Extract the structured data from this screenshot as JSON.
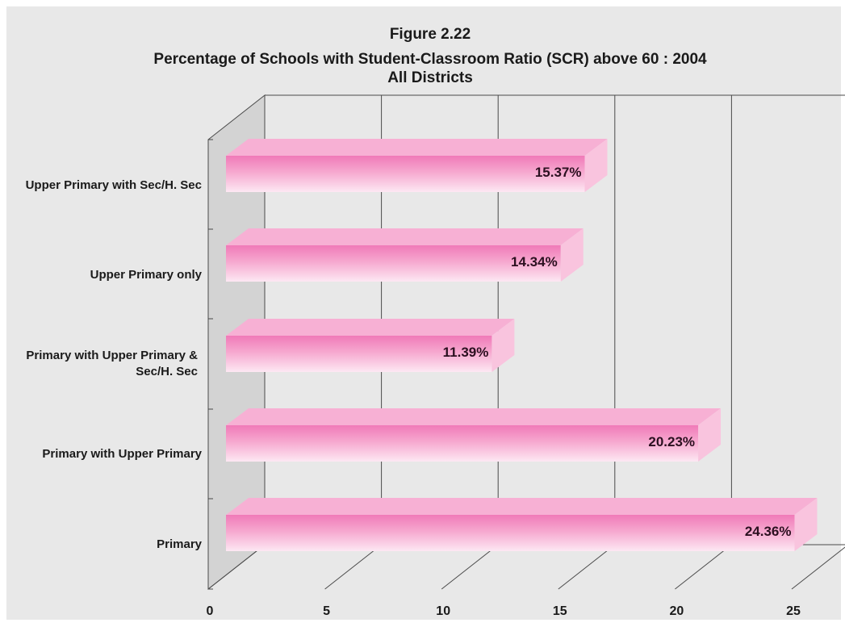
{
  "colors": {
    "background": "#e8e8e8",
    "side_wall": "#d3d3d3",
    "bar_front": "#f38cc3",
    "bar_top": "#f7b0d4",
    "bar_side": "#f9c4de",
    "grid": "#4a4a4a"
  },
  "chart_data": {
    "type": "bar",
    "orientation": "horizontal",
    "three_d": true,
    "title": "Figure 2.22",
    "subtitle": "Percentage of Schools with Student-Classroom Ratio (SCR) above 60 : 2004",
    "subtitle2": "All Districts",
    "categories": [
      "Upper Primary with Sec/H. Sec",
      "Upper Primary only",
      "Primary with Upper Primary & Sec/H. Sec",
      "Primary with Upper Primary",
      "Primary"
    ],
    "category_lines": [
      [
        "Upper Primary with Sec/H. Sec"
      ],
      [
        "Upper Primary only"
      ],
      [
        "Primary with Upper Primary &",
        "Sec/H. Sec"
      ],
      [
        "Primary with Upper Primary"
      ],
      [
        "Primary"
      ]
    ],
    "values": [
      15.37,
      14.34,
      11.39,
      20.23,
      24.36
    ],
    "data_labels": [
      "15.37%",
      "14.34%",
      "11.39%",
      "20.23%",
      "24.36%"
    ],
    "xlim": [
      0,
      25
    ],
    "xticks": [
      0,
      5,
      10,
      15,
      20,
      25
    ],
    "xtick_labels": [
      "0",
      "5",
      "10",
      "15",
      "20",
      "25"
    ],
    "grid": true,
    "legend": "none"
  }
}
